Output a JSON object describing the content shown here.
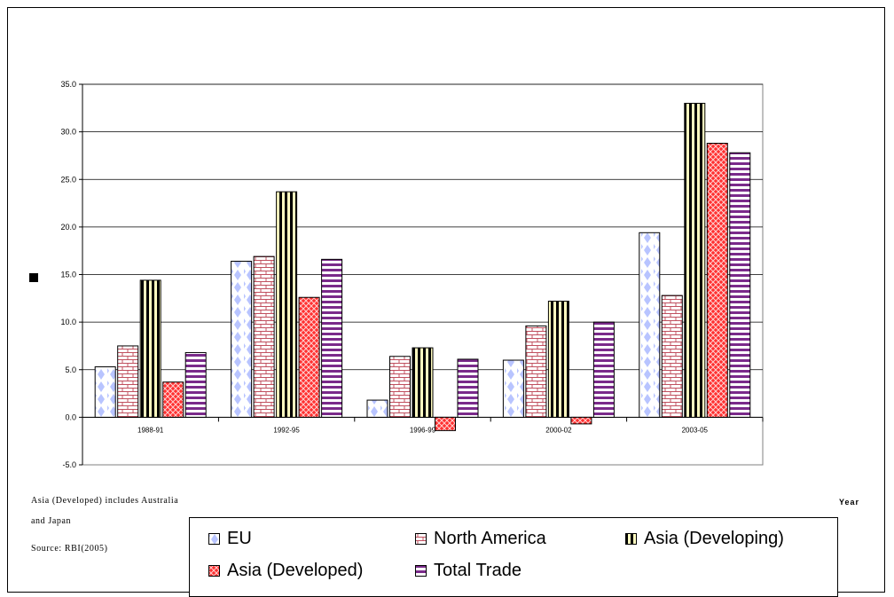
{
  "chart_data": {
    "type": "bar",
    "categories": [
      "1988-91",
      "1992-95",
      "1996-99",
      "2000-02",
      "2003-05"
    ],
    "series": [
      {
        "name": "EU",
        "values": [
          5.3,
          16.4,
          1.8,
          6.0,
          19.4
        ]
      },
      {
        "name": "North America",
        "values": [
          7.5,
          16.9,
          6.4,
          9.6,
          12.8
        ]
      },
      {
        "name": "Asia (Developing)",
        "values": [
          14.4,
          23.7,
          7.3,
          12.2,
          33.0
        ]
      },
      {
        "name": "Asia (Developed)",
        "values": [
          3.7,
          12.6,
          -1.4,
          -0.7,
          28.8
        ]
      },
      {
        "name": "Total Trade",
        "values": [
          6.8,
          16.6,
          6.1,
          10.0,
          27.8
        ]
      }
    ],
    "ylim": [
      -5,
      35
    ],
    "yticks": [
      "-5.0",
      "0.0",
      "5.0",
      "10.0",
      "15.0",
      "20.0",
      "25.0",
      "30.0",
      "35.0"
    ],
    "xlabel": "Year",
    "ylabel": "",
    "grid": true,
    "legend_placement": "bottom",
    "colors": {
      "EU": "#d6dcff",
      "North America": "#f0c0c8",
      "Asia (Developing)": "#fffcc0",
      "Asia (Developed)": "#ff3030",
      "Total Trade": "#ffffff"
    }
  },
  "notes": {
    "line1": "Asia (Developed) includes Australia",
    "line2": "and Japan",
    "source": "Source: RBI(2005)"
  }
}
